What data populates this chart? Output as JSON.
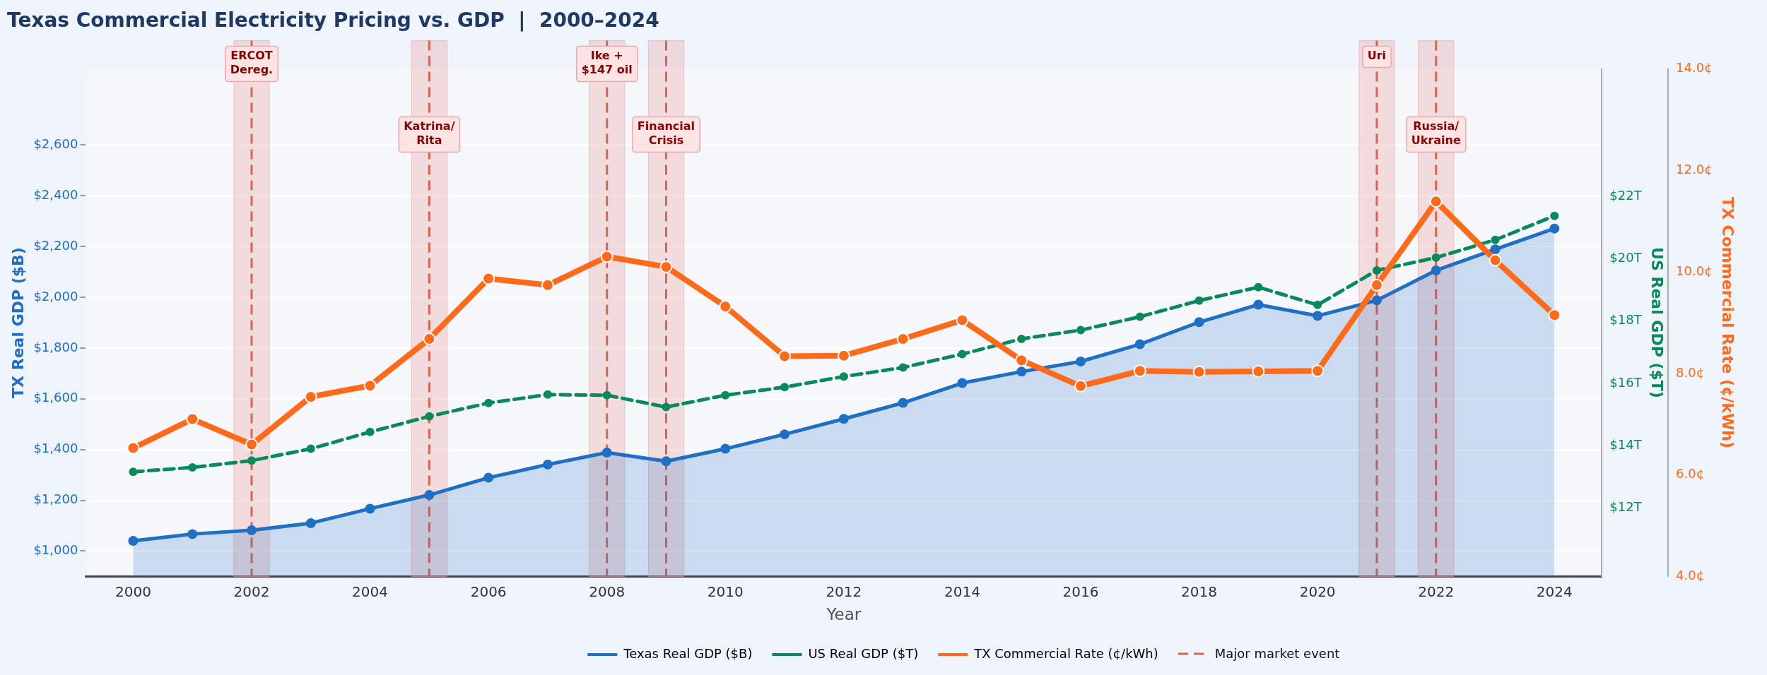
{
  "chart_data": {
    "type": "line",
    "title": "Texas Commercial Electricity Pricing vs. GDP  |  2000–2024",
    "xlabel": "Year",
    "ylabel": "TX Real GDP ($B)",
    "y2label": "US Real GDP ($T)",
    "y3label": "TX Commercial Rate (¢/kWh)",
    "x": [
      2000,
      2001,
      2002,
      2003,
      2004,
      2005,
      2006,
      2007,
      2008,
      2009,
      2010,
      2011,
      2012,
      2013,
      2014,
      2015,
      2016,
      2017,
      2018,
      2019,
      2020,
      2021,
      2022,
      2023,
      2024
    ],
    "series": [
      {
        "name": "Texas Real GDP ($B)",
        "type": "area",
        "color": "#1f6fc5",
        "values": [
          1040,
          1067,
          1082,
          1110,
          1167,
          1221,
          1289,
          1341,
          1388,
          1354,
          1403,
          1460,
          1521,
          1584,
          1662,
          1707,
          1747,
          1815,
          1902,
          1971,
          1927,
          1988,
          2106,
          2189,
          2271
        ]
      },
      {
        "name": "US Real GDP ($T)",
        "type": "line",
        "axis": "y2",
        "line_style": "dashed",
        "color": "#0a8a5a",
        "values": [
          13.16,
          13.3,
          13.52,
          13.9,
          14.44,
          14.94,
          15.37,
          15.64,
          15.62,
          15.24,
          15.62,
          15.88,
          16.22,
          16.51,
          16.94,
          17.43,
          17.71,
          18.14,
          18.66,
          19.09,
          18.52,
          19.63,
          20.04,
          20.61,
          21.38
        ]
      },
      {
        "name": "TX Commercial Rate (¢/kWh)",
        "type": "line",
        "axis": "y3",
        "color": "#ff6a1a",
        "values": [
          6.53,
          7.1,
          6.6,
          7.54,
          7.76,
          8.68,
          9.87,
          9.74,
          10.3,
          10.1,
          9.32,
          8.34,
          8.35,
          8.68,
          9.05,
          8.26,
          7.75,
          8.05,
          8.03,
          8.04,
          8.05,
          9.74,
          11.39,
          10.23,
          9.15
        ]
      }
    ],
    "xlim": [
      1999.2,
      2024.8
    ],
    "xticks": [
      2000,
      2002,
      2004,
      2006,
      2008,
      2010,
      2012,
      2014,
      2016,
      2018,
      2020,
      2022,
      2024
    ],
    "ylim": [
      900,
      2900
    ],
    "yticks": [
      {
        "value": 1000,
        "label": "$1,000"
      },
      {
        "value": 1200,
        "label": "$1,200"
      },
      {
        "value": 1400,
        "label": "$1,400"
      },
      {
        "value": 1600,
        "label": "$1,600"
      },
      {
        "value": 1800,
        "label": "$1,800"
      },
      {
        "value": 2000,
        "label": "$2,000"
      },
      {
        "value": 2200,
        "label": "$2,200"
      },
      {
        "value": 2400,
        "label": "$2,400"
      },
      {
        "value": 2600,
        "label": "$2,600"
      }
    ],
    "y2lim": [
      9.8,
      26.1
    ],
    "y2ticks": [
      {
        "value": 12,
        "label": "$12T"
      },
      {
        "value": 14,
        "label": "$14T"
      },
      {
        "value": 16,
        "label": "$16T"
      },
      {
        "value": 18,
        "label": "$18T"
      },
      {
        "value": 20,
        "label": "$20T"
      },
      {
        "value": 22,
        "label": "$22T"
      }
    ],
    "y3lim": [
      4,
      14
    ],
    "y3ticks": [
      {
        "value": 4,
        "label": "4.0¢"
      },
      {
        "value": 6,
        "label": "6.0¢"
      },
      {
        "value": 8,
        "label": "8.0¢"
      },
      {
        "value": 10,
        "label": "10.0¢"
      },
      {
        "value": 12,
        "label": "12.0¢"
      },
      {
        "value": 14,
        "label": "14.0¢"
      }
    ],
    "ref_lines": [
      {
        "axis": "x",
        "value": 2002,
        "label": "ERCOT\nDereg.",
        "color": "#d9634f",
        "line_style": "dashed"
      },
      {
        "axis": "x",
        "value": 2005,
        "label": "Katrina/\nRita",
        "color": "#d9634f",
        "line_style": "dashed"
      },
      {
        "axis": "x",
        "value": 2008,
        "label": "Ike +\n$147 oil",
        "color": "#d9634f",
        "line_style": "dashed"
      },
      {
        "axis": "x",
        "value": 2009,
        "label": "Financial\nCrisis",
        "color": "#d9634f",
        "line_style": "dashed"
      },
      {
        "axis": "x",
        "value": 2021,
        "label": "Uri",
        "color": "#d9634f",
        "line_style": "dashed"
      },
      {
        "axis": "x",
        "value": 2022,
        "label": "Russia/\nUkraine",
        "color": "#d9634f",
        "line_style": "dashed"
      }
    ],
    "bands": [
      {
        "axis": "x",
        "from": 2001.7,
        "to": 2002.3,
        "color": "#e8a5a5"
      },
      {
        "axis": "x",
        "from": 2004.7,
        "to": 2005.3,
        "color": "#e8a5a5"
      },
      {
        "axis": "x",
        "from": 2007.7,
        "to": 2008.3,
        "color": "#e8a5a5"
      },
      {
        "axis": "x",
        "from": 2008.7,
        "to": 2009.3,
        "color": "#e8a5a5"
      },
      {
        "axis": "x",
        "from": 2020.7,
        "to": 2021.3,
        "color": "#e8a5a5"
      },
      {
        "axis": "x",
        "from": 2021.7,
        "to": 2022.3,
        "color": "#e8a5a5"
      }
    ],
    "annotations": [
      "Major market event"
    ],
    "grid": "y",
    "legend": "bottom",
    "marker": "circle"
  }
}
